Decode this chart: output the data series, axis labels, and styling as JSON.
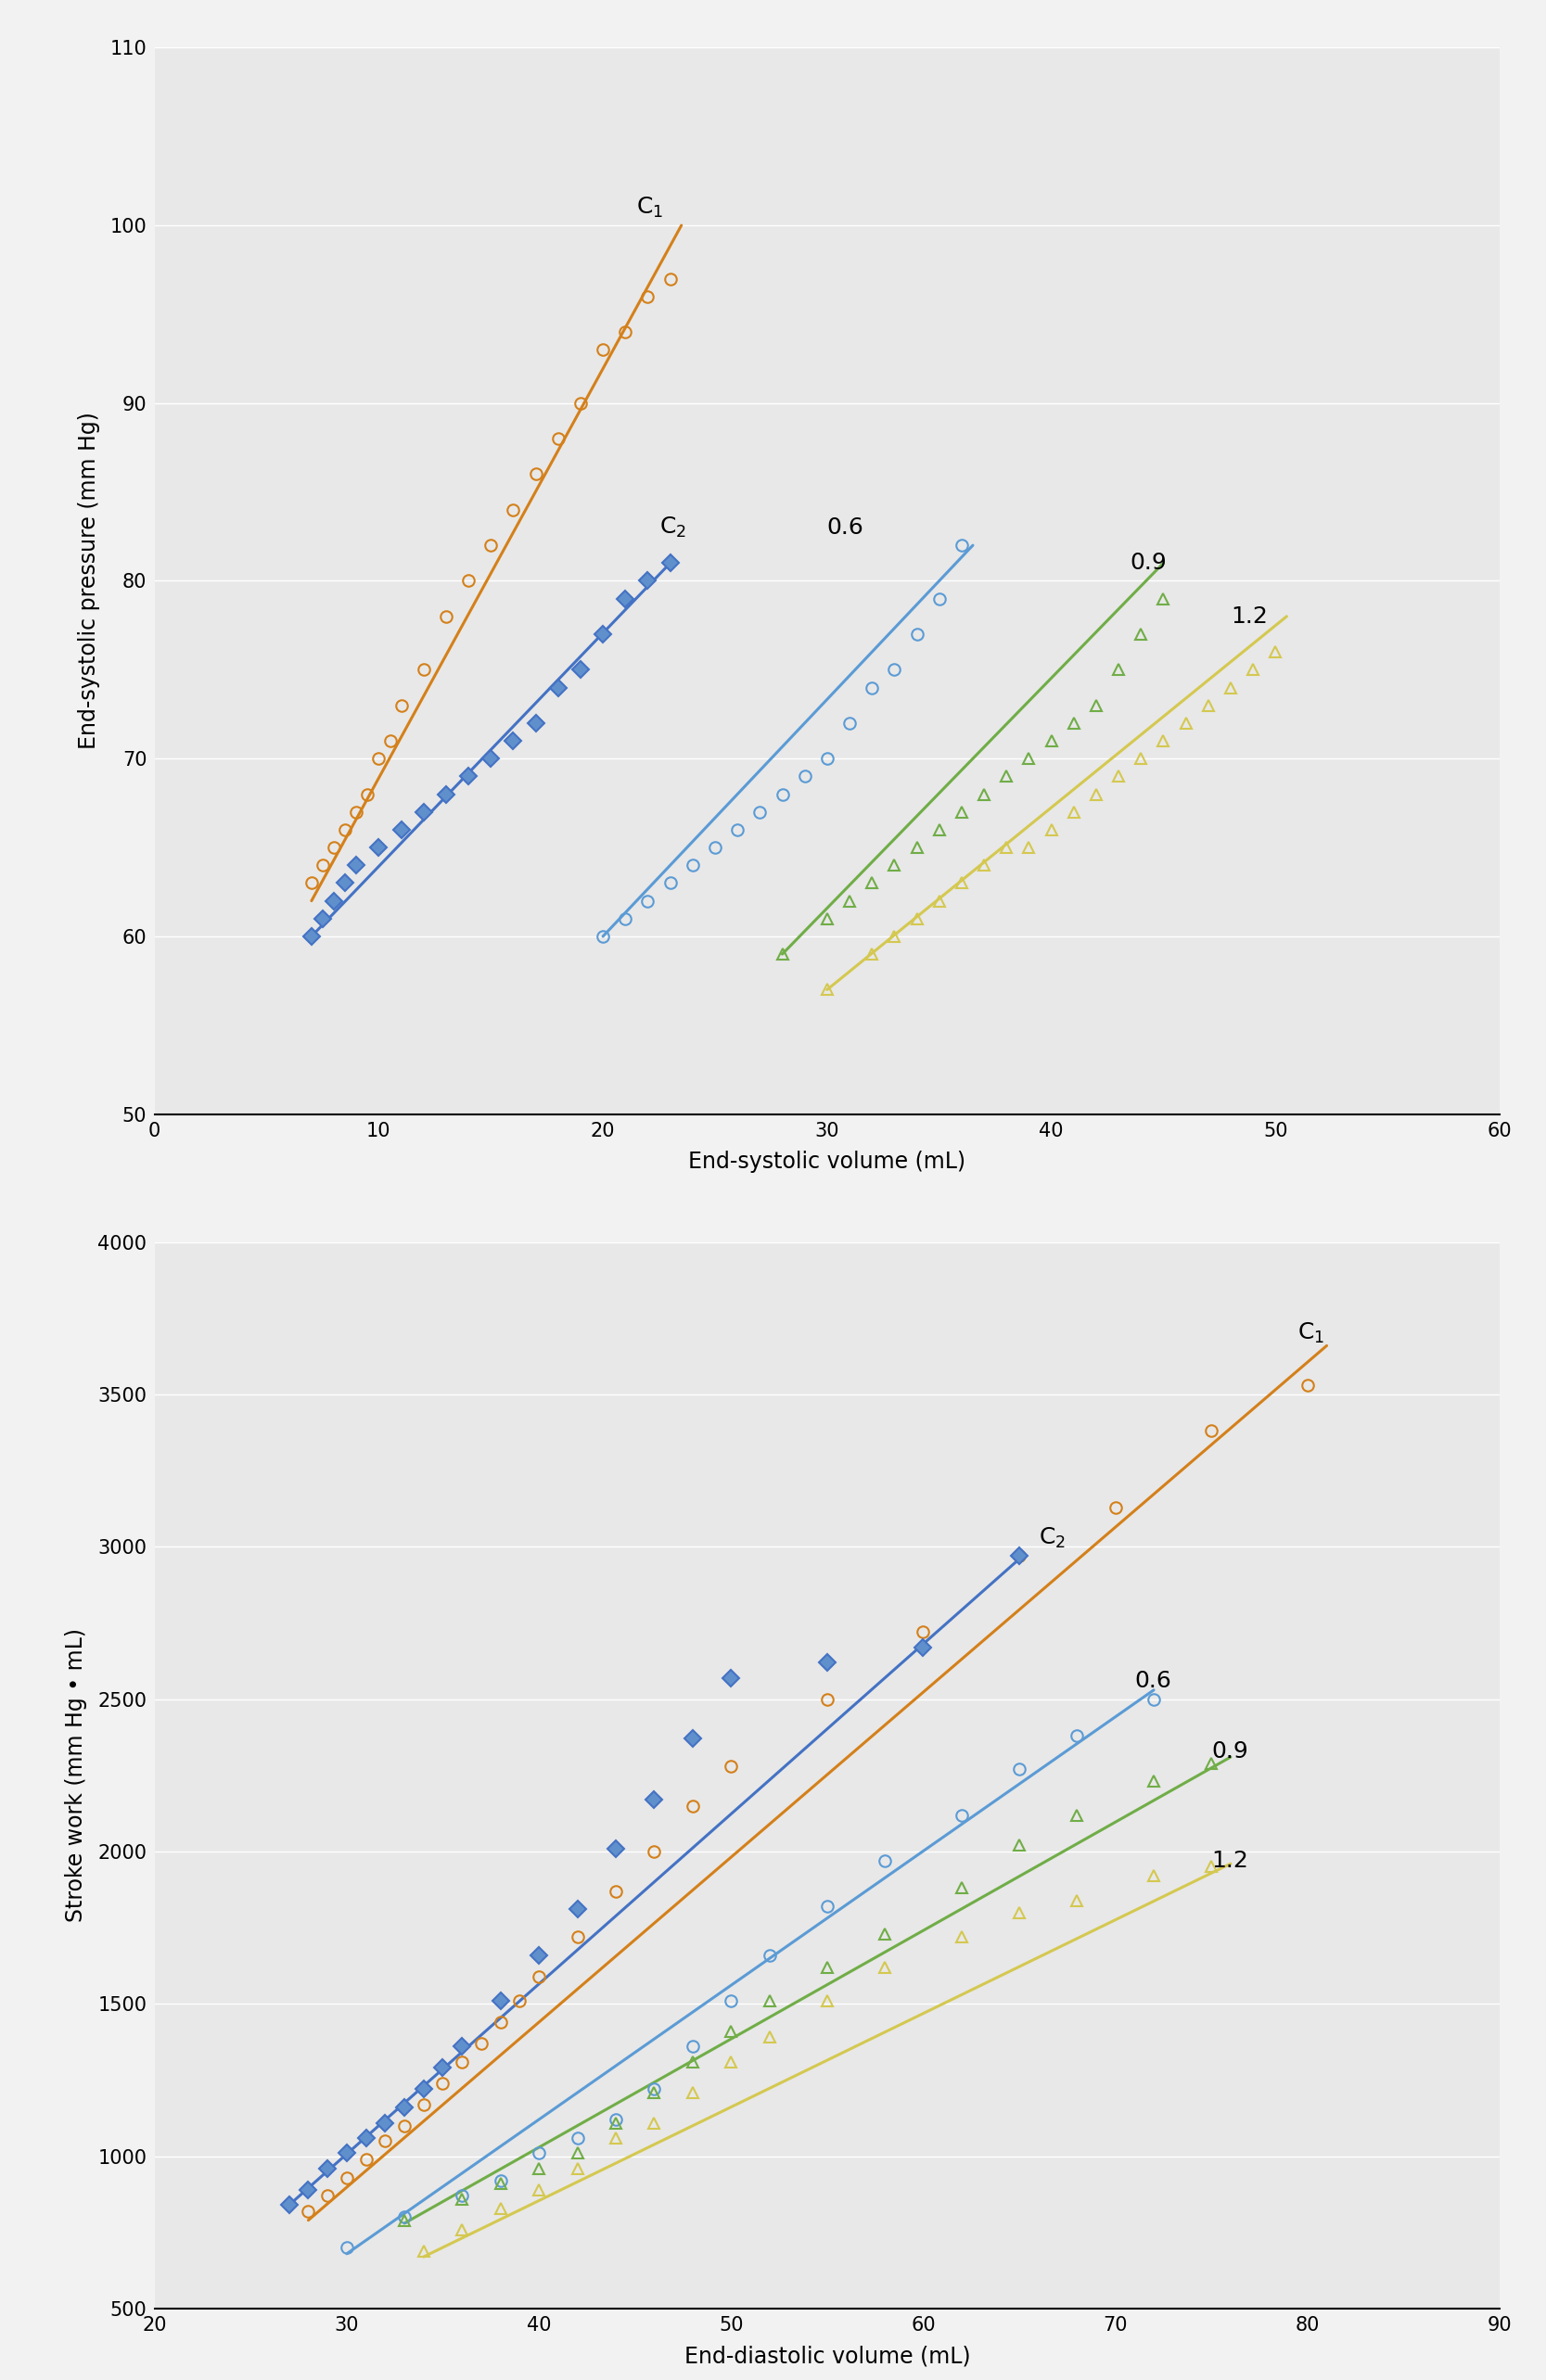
{
  "fig_bg": "#f2f2f2",
  "plot_bg": "#e8e8e8",
  "top": {
    "xlabel": "End-systolic volume (mL)",
    "ylabel": "End-systolic pressure (mm Hg)",
    "xlim": [
      0,
      60
    ],
    "ylim": [
      50,
      110
    ],
    "xticks": [
      0,
      10,
      20,
      30,
      40,
      50,
      60
    ],
    "yticks": [
      50,
      60,
      70,
      80,
      90,
      100,
      110
    ],
    "series": [
      {
        "label": "C1",
        "annotation": "C$_1$",
        "ann_x": 21.5,
        "ann_y": 101,
        "color": "#D4801A",
        "marker": "o",
        "markerfacecolor": "none",
        "markersize": 9,
        "linewidth": 2.2,
        "scatter_x": [
          7.0,
          7.5,
          8.0,
          8.5,
          9.0,
          9.5,
          10.0,
          10.5,
          11.0,
          12.0,
          13.0,
          14.0,
          15.0,
          16.0,
          17.0,
          18.0,
          19.0,
          20.0,
          21.0,
          22.0,
          23.0
        ],
        "scatter_y": [
          63,
          64,
          65,
          66,
          67,
          68,
          70,
          71,
          73,
          75,
          78,
          80,
          82,
          84,
          86,
          88,
          90,
          93,
          94,
          96,
          97
        ],
        "fit_x": [
          7.0,
          23.5
        ],
        "fit_y": [
          62,
          100
        ]
      },
      {
        "label": "C2",
        "annotation": "C$_2$",
        "ann_x": 22.5,
        "ann_y": 83,
        "color": "#4472C4",
        "marker": "D",
        "markerfacecolor": "#6090CC",
        "markersize": 9,
        "linewidth": 2.2,
        "scatter_x": [
          7.0,
          7.5,
          8.0,
          8.5,
          9.0,
          10.0,
          11.0,
          12.0,
          13.0,
          14.0,
          15.0,
          16.0,
          17.0,
          18.0,
          19.0,
          20.0,
          21.0,
          22.0,
          23.0
        ],
        "scatter_y": [
          60,
          61,
          62,
          63,
          64,
          65,
          66,
          67,
          68,
          69,
          70,
          71,
          72,
          74,
          75,
          77,
          79,
          80,
          81
        ],
        "fit_x": [
          7.0,
          23.0
        ],
        "fit_y": [
          60,
          81
        ]
      },
      {
        "label": "0.6",
        "annotation": "0.6",
        "ann_x": 30.0,
        "ann_y": 83,
        "color": "#5B9BD5",
        "marker": "o",
        "markerfacecolor": "none",
        "markersize": 9,
        "linewidth": 2.2,
        "scatter_x": [
          20.0,
          21.0,
          22.0,
          23.0,
          24.0,
          25.0,
          26.0,
          27.0,
          28.0,
          29.0,
          30.0,
          31.0,
          32.0,
          33.0,
          34.0,
          35.0,
          36.0
        ],
        "scatter_y": [
          60,
          61,
          62,
          63,
          64,
          65,
          66,
          67,
          68,
          69,
          70,
          72,
          74,
          75,
          77,
          79,
          82
        ],
        "fit_x": [
          20.0,
          36.5
        ],
        "fit_y": [
          60,
          82
        ]
      },
      {
        "label": "0.9",
        "annotation": "0.9",
        "ann_x": 43.5,
        "ann_y": 81,
        "color": "#70AD47",
        "marker": "^",
        "markerfacecolor": "none",
        "markersize": 9,
        "linewidth": 2.2,
        "scatter_x": [
          28.0,
          30.0,
          31.0,
          32.0,
          33.0,
          34.0,
          35.0,
          36.0,
          37.0,
          38.0,
          39.0,
          40.0,
          41.0,
          42.0,
          43.0,
          44.0,
          45.0
        ],
        "scatter_y": [
          59,
          61,
          62,
          63,
          64,
          65,
          66,
          67,
          68,
          69,
          70,
          71,
          72,
          73,
          75,
          77,
          79
        ],
        "fit_x": [
          28.0,
          45.0
        ],
        "fit_y": [
          59,
          81
        ]
      },
      {
        "label": "1.2",
        "annotation": "1.2",
        "ann_x": 48.0,
        "ann_y": 78,
        "color": "#D4C850",
        "marker": "^",
        "markerfacecolor": "none",
        "markersize": 9,
        "linewidth": 2.2,
        "scatter_x": [
          30.0,
          32.0,
          33.0,
          34.0,
          35.0,
          36.0,
          37.0,
          38.0,
          39.0,
          40.0,
          41.0,
          42.0,
          43.0,
          44.0,
          45.0,
          46.0,
          47.0,
          48.0,
          49.0,
          50.0
        ],
        "scatter_y": [
          57,
          59,
          60,
          61,
          62,
          63,
          64,
          65,
          65,
          66,
          67,
          68,
          69,
          70,
          71,
          72,
          73,
          74,
          75,
          76
        ],
        "fit_x": [
          30.0,
          50.5
        ],
        "fit_y": [
          57,
          78
        ]
      }
    ]
  },
  "bottom": {
    "xlabel": "End-diastolic volume (mL)",
    "ylabel": "Stroke work (mm Hg • mL)",
    "xlim": [
      20,
      90
    ],
    "ylim": [
      500,
      4000
    ],
    "xticks": [
      20,
      30,
      40,
      50,
      60,
      70,
      80,
      90
    ],
    "yticks": [
      500,
      1000,
      1500,
      2000,
      2500,
      3000,
      3500,
      4000
    ],
    "series": [
      {
        "label": "C1",
        "annotation": "C$_1$",
        "ann_x": 79.5,
        "ann_y": 3700,
        "color": "#D4801A",
        "marker": "o",
        "markerfacecolor": "none",
        "markersize": 9,
        "linewidth": 2.2,
        "scatter_x": [
          28,
          29,
          30,
          31,
          32,
          33,
          34,
          35,
          36,
          37,
          38,
          39,
          40,
          42,
          44,
          46,
          48,
          50,
          55,
          60,
          65,
          70,
          75,
          80
        ],
        "scatter_y": [
          820,
          870,
          930,
          990,
          1050,
          1100,
          1170,
          1240,
          1310,
          1370,
          1440,
          1510,
          1590,
          1720,
          1870,
          2000,
          2150,
          2280,
          2500,
          2720,
          2970,
          3130,
          3380,
          3530
        ],
        "fit_x": [
          28,
          81
        ],
        "fit_y": [
          790,
          3660
        ]
      },
      {
        "label": "C2",
        "annotation": "C$_2$",
        "ann_x": 66,
        "ann_y": 3030,
        "color": "#4472C4",
        "marker": "D",
        "markerfacecolor": "#6090CC",
        "markersize": 9,
        "linewidth": 2.2,
        "scatter_x": [
          27,
          28,
          29,
          30,
          31,
          32,
          33,
          34,
          35,
          36,
          38,
          40,
          42,
          44,
          46,
          48,
          50,
          55,
          60,
          65
        ],
        "scatter_y": [
          840,
          890,
          960,
          1010,
          1060,
          1110,
          1160,
          1220,
          1290,
          1360,
          1510,
          1660,
          1810,
          2010,
          2170,
          2370,
          2570,
          2620,
          2670,
          2970
        ],
        "fit_x": [
          27,
          65
        ],
        "fit_y": [
          840,
          2960
        ]
      },
      {
        "label": "0.6",
        "annotation": "0.6",
        "ann_x": 71,
        "ann_y": 2560,
        "color": "#5B9BD5",
        "marker": "o",
        "markerfacecolor": "none",
        "markersize": 9,
        "linewidth": 2.2,
        "scatter_x": [
          30,
          33,
          36,
          38,
          40,
          42,
          44,
          46,
          48,
          50,
          52,
          55,
          58,
          62,
          65,
          68,
          72
        ],
        "scatter_y": [
          700,
          800,
          870,
          920,
          1010,
          1060,
          1120,
          1220,
          1360,
          1510,
          1660,
          1820,
          1970,
          2120,
          2270,
          2380,
          2500
        ],
        "fit_x": [
          30,
          72
        ],
        "fit_y": [
          680,
          2530
        ]
      },
      {
        "label": "0.9",
        "annotation": "0.9",
        "ann_x": 75,
        "ann_y": 2330,
        "color": "#70AD47",
        "marker": "^",
        "markerfacecolor": "none",
        "markersize": 9,
        "linewidth": 2.2,
        "scatter_x": [
          33,
          36,
          38,
          40,
          42,
          44,
          46,
          48,
          50,
          52,
          55,
          58,
          62,
          65,
          68,
          72,
          75
        ],
        "scatter_y": [
          790,
          860,
          910,
          960,
          1010,
          1110,
          1210,
          1310,
          1410,
          1510,
          1620,
          1730,
          1880,
          2020,
          2120,
          2230,
          2290
        ],
        "fit_x": [
          33,
          76
        ],
        "fit_y": [
          780,
          2310
        ]
      },
      {
        "label": "1.2",
        "annotation": "1.2",
        "ann_x": 75,
        "ann_y": 1970,
        "color": "#D4C850",
        "marker": "^",
        "markerfacecolor": "none",
        "markersize": 9,
        "linewidth": 2.2,
        "scatter_x": [
          34,
          36,
          38,
          40,
          42,
          44,
          46,
          48,
          50,
          52,
          55,
          58,
          62,
          65,
          68,
          72,
          75
        ],
        "scatter_y": [
          690,
          760,
          830,
          890,
          960,
          1060,
          1110,
          1210,
          1310,
          1390,
          1510,
          1620,
          1720,
          1800,
          1840,
          1920,
          1950
        ],
        "fit_x": [
          34,
          76
        ],
        "fit_y": [
          670,
          1960
        ]
      }
    ]
  }
}
